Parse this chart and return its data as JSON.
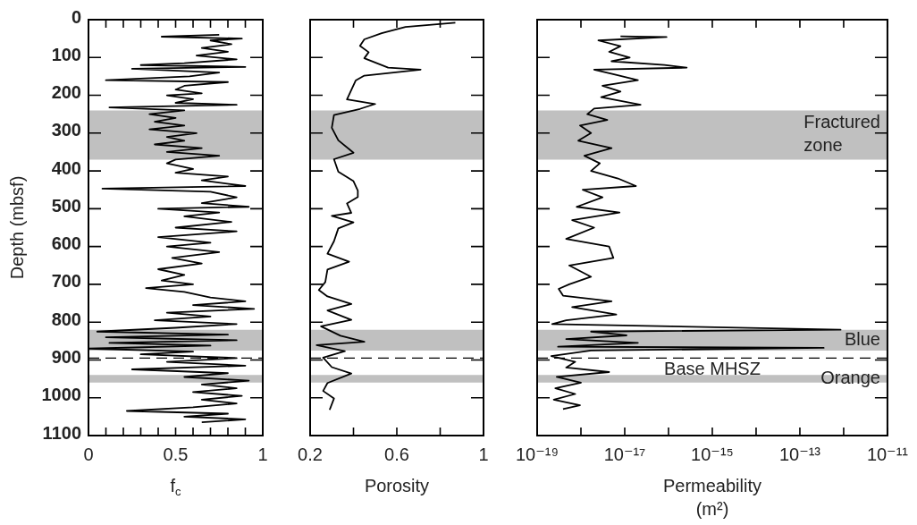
{
  "chart_data": [
    {
      "type": "line",
      "xlabel": "f$_{c}$",
      "ylabel": "Depth (mbsf)",
      "xlim": [
        0,
        1
      ],
      "xticks": [
        0,
        {
          "value": 0.1,
          "label": null
        },
        {
          "value": 0.2,
          "label": null
        },
        {
          "value": 0.3,
          "label": null
        },
        {
          "value": 0.4,
          "label": null
        },
        0.5,
        {
          "value": 0.6,
          "label": null
        },
        {
          "value": 0.7,
          "label": null
        },
        {
          "value": 0.8,
          "label": null
        },
        {
          "value": 0.9,
          "label": null
        },
        1
      ],
      "ylim": [
        1100,
        0
      ],
      "yticks": [
        0,
        100,
        200,
        300,
        400,
        500,
        600,
        700,
        800,
        900,
        1000,
        1100
      ],
      "series": [
        {
          "color": "#000000",
          "x": [
            0.75,
            0.42,
            0.88,
            0.7,
            0.82,
            0.65,
            0.8,
            0.62,
            0.85,
            0.55,
            0.3,
            0.9,
            0.25,
            0.75,
            0.58,
            0.1,
            0.8,
            0.55,
            0.5,
            0.65,
            0.45,
            0.6,
            0.5,
            0.85,
            0.12,
            0.55,
            0.35,
            0.5,
            0.38,
            0.55,
            0.35,
            0.62,
            0.45,
            0.55,
            0.38,
            0.65,
            0.45,
            0.75,
            0.5,
            0.45,
            0.6,
            0.5,
            0.8,
            0.65,
            0.9,
            0.08,
            0.7,
            0.85,
            0.65,
            0.92,
            0.4,
            0.75,
            0.55,
            0.82,
            0.5,
            0.85,
            0.4,
            0.7,
            0.45,
            0.75,
            0.48,
            0.65,
            0.4,
            0.55,
            0.42,
            0.6,
            0.33,
            0.55,
            0.7,
            0.9,
            0.6,
            0.95,
            0.45,
            0.7,
            0.38,
            0.85,
            0.5,
            0.05,
            0.8,
            0.1,
            0.85,
            0.12,
            0.7,
            0.0,
            0.6,
            0.3,
            0.85,
            0.45,
            0.9,
            0.25,
            0.8,
            0.55,
            0.92,
            0.65,
            0.85,
            0.6,
            0.88,
            0.65,
            0.85,
            0.6,
            0.22,
            0.8,
            0.55,
            0.9,
            0.65
          ],
          "values": [
            40,
            45,
            50,
            55,
            65,
            75,
            85,
            95,
            105,
            115,
            120,
            125,
            130,
            140,
            150,
            160,
            165,
            175,
            185,
            195,
            200,
            210,
            220,
            225,
            232,
            240,
            250,
            260,
            270,
            280,
            290,
            300,
            310,
            320,
            330,
            340,
            350,
            360,
            370,
            380,
            395,
            405,
            415,
            425,
            440,
            447,
            455,
            470,
            485,
            495,
            500,
            510,
            520,
            535,
            550,
            560,
            575,
            590,
            600,
            615,
            630,
            645,
            660,
            675,
            690,
            700,
            710,
            720,
            735,
            745,
            755,
            765,
            775,
            785,
            795,
            805,
            815,
            825,
            833,
            840,
            848,
            855,
            862,
            870,
            878,
            885,
            895,
            905,
            915,
            925,
            935,
            945,
            955,
            965,
            975,
            985,
            995,
            1005,
            1015,
            1025,
            1035,
            1042,
            1050,
            1057,
            1065
          ]
        }
      ],
      "bands": [
        {
          "axis": "y",
          "from": 240,
          "to": 370,
          "color": "#c0c0c0"
        },
        {
          "axis": "y",
          "from": 820,
          "to": 875,
          "color": "#c0c0c0"
        },
        {
          "axis": "y",
          "from": 940,
          "to": 960,
          "color": "#c0c0c0"
        }
      ],
      "ref_lines": [
        {
          "axis": "y",
          "value": 895,
          "color": "#000000",
          "line_style": "dashed"
        }
      ]
    },
    {
      "type": "line",
      "xlabel": "Porosity",
      "xlim": [
        0.2,
        1
      ],
      "xticks": [
        0.2,
        {
          "value": 0.4,
          "label": null
        },
        0.6,
        {
          "value": 0.8,
          "label": null
        },
        1
      ],
      "ylim": [
        1100,
        0
      ],
      "yticks": [
        0,
        100,
        200,
        300,
        400,
        500,
        600,
        700,
        800,
        900,
        1000,
        1100
      ],
      "tick_labels": "x",
      "series": [
        {
          "color": "#000000",
          "x": [
            0.87,
            0.64,
            0.53,
            0.45,
            0.43,
            0.47,
            0.45,
            0.56,
            0.71,
            0.45,
            0.41,
            0.39,
            0.37,
            0.5,
            0.43,
            0.31,
            0.3,
            0.33,
            0.4,
            0.31,
            0.33,
            0.4,
            0.42,
            0.42,
            0.37,
            0.39,
            0.3,
            0.4,
            0.33,
            0.31,
            0.28,
            0.38,
            0.28,
            0.27,
            0.24,
            0.28,
            0.39,
            0.28,
            0.39,
            0.25,
            0.34,
            0.45,
            0.23,
            0.36,
            0.26,
            0.3,
            0.39,
            0.28,
            0.26,
            0.31,
            0.29
          ],
          "values": [
            8,
            19,
            36,
            52,
            69,
            86,
            102,
            127,
            132,
            148,
            161,
            186,
            211,
            223,
            236,
            252,
            286,
            319,
            352,
            369,
            402,
            427,
            452,
            469,
            486,
            511,
            519,
            536,
            552,
            586,
            619,
            640,
            661,
            694,
            715,
            732,
            752,
            769,
            794,
            811,
            836,
            852,
            861,
            877,
            894,
            919,
            936,
            961,
            982,
            1002,
            1032
          ]
        }
      ],
      "bands": [
        {
          "axis": "y",
          "from": 240,
          "to": 370,
          "color": "#c0c0c0"
        },
        {
          "axis": "y",
          "from": 820,
          "to": 875,
          "color": "#c0c0c0"
        },
        {
          "axis": "y",
          "from": 940,
          "to": 960,
          "color": "#c0c0c0"
        }
      ],
      "ref_lines": [
        {
          "axis": "y",
          "value": 895,
          "color": "#000000",
          "line_style": "dashed"
        }
      ]
    },
    {
      "type": "line",
      "xlabel": "Permeability (m²)",
      "log": "x",
      "xlim": [
        1e-19,
        1e-11
      ],
      "xticks": [
        {
          "value": 1e-19,
          "label": "10⁻¹⁹"
        },
        {
          "value": 1e-18,
          "label": null
        },
        {
          "value": 1e-17,
          "label": "10⁻¹⁷"
        },
        {
          "value": 1e-16,
          "label": null
        },
        {
          "value": 1e-15,
          "label": "10⁻¹⁵"
        },
        {
          "value": 1e-14,
          "label": null
        },
        {
          "value": 1e-13,
          "label": "10⁻¹³"
        },
        {
          "value": 1e-12,
          "label": null
        },
        {
          "value": 1e-11,
          "label": "10⁻¹¹"
        }
      ],
      "ylim": [
        1100,
        0
      ],
      "yticks": [
        0,
        100,
        200,
        300,
        400,
        500,
        600,
        700,
        800,
        900,
        1000,
        1100
      ],
      "tick_labels": "x",
      "series": [
        {
          "color": "#000000",
          "x": [
            8e-18,
            9e-17,
            2.5e-18,
            8e-18,
            4.4e-18,
            1.3e-17,
            5e-18,
            8e-17,
            2.6e-16,
            2e-18,
            6e-18,
            2e-17,
            3.1e-18,
            8e-18,
            2.9e-18,
            2.3e-17,
            2e-18,
            1.4e-18,
            4e-18,
            9.5e-19,
            1.7e-18,
            8.7e-19,
            5e-18,
            1.2e-18,
            2.7e-18,
            1.7e-18,
            7e-18,
            1.8e-17,
            1.1e-18,
            3.1e-18,
            8e-19,
            7.6e-18,
            6.3e-19,
            2e-18,
            4.6e-19,
            4.4e-18,
            5.5e-18,
            5.4e-19,
            1.7e-18,
            5.4e-19,
            3.1e-19,
            3.9e-19,
            5e-18,
            6.3e-19,
            6.4e-18,
            4.6e-19,
            2.2e-19,
            8.5e-13,
            1.7e-18,
            1.1e-17,
            4.6e-19,
            2e-17,
            3e-19,
            3.5e-13,
            1.7e-18,
            2.1e-19,
            7.4e-19,
            4.6e-19,
            4.4e-18,
            2.8e-19,
            1e-18,
            2.6e-19,
            7.4e-19,
            2.4e-19,
            9.5e-19,
            3.9e-19
          ],
          "values": [
            44,
            46,
            55,
            70,
            85,
            100,
            110,
            120,
            127,
            132,
            145,
            160,
            175,
            190,
            205,
            225,
            235,
            250,
            265,
            280,
            300,
            320,
            340,
            360,
            380,
            400,
            420,
            440,
            450,
            470,
            495,
            510,
            530,
            550,
            580,
            600,
            630,
            650,
            680,
            700,
            712,
            730,
            745,
            760,
            780,
            795,
            805,
            820,
            825,
            835,
            845,
            855,
            865,
            868,
            875,
            890,
            905,
            920,
            932,
            945,
            960,
            975,
            990,
            1005,
            1020,
            1030
          ]
        }
      ],
      "bands": [
        {
          "axis": "y",
          "from": 240,
          "to": 370,
          "color": "#c0c0c0",
          "label": "Fractured zone"
        },
        {
          "axis": "y",
          "from": 820,
          "to": 875,
          "color": "#c0c0c0",
          "label": "Blue"
        },
        {
          "axis": "y",
          "from": 940,
          "to": 960,
          "color": "#c0c0c0",
          "label": "Orange"
        }
      ],
      "ref_lines": [
        {
          "axis": "y",
          "value": 895,
          "color": "#000000",
          "line_style": "dashed",
          "label": "Base MHSZ"
        }
      ]
    }
  ]
}
